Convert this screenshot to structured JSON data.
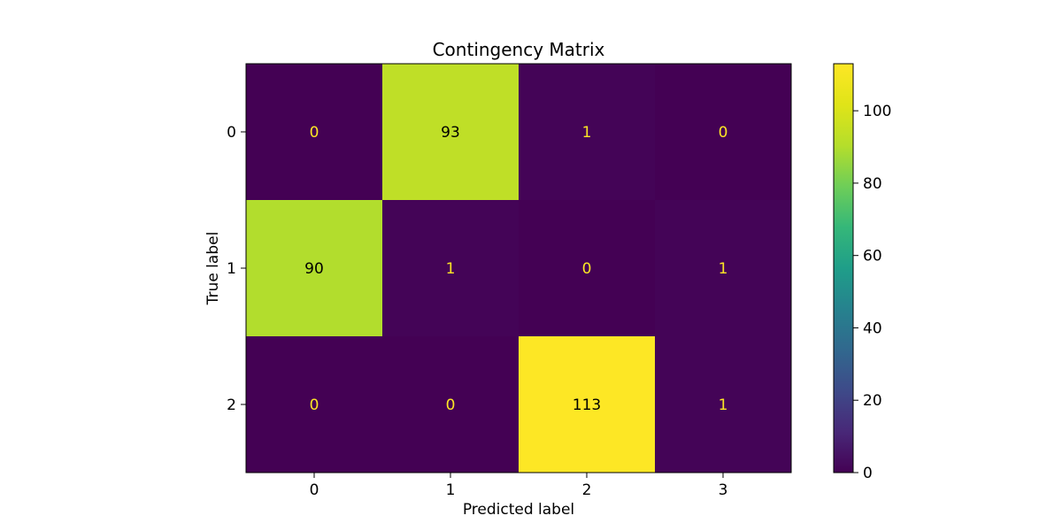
{
  "chart_data": {
    "type": "heatmap",
    "title": "Contingency Matrix",
    "xlabel": "Predicted label",
    "ylabel": "True label",
    "x_categories": [
      "0",
      "1",
      "2",
      "3"
    ],
    "y_categories": [
      "0",
      "1",
      "2"
    ],
    "values": [
      [
        0,
        93,
        1,
        0
      ],
      [
        90,
        1,
        0,
        1
      ],
      [
        0,
        0,
        113,
        1
      ]
    ],
    "colormap": "viridis",
    "colorbar": {
      "vmin": 0,
      "vmax": 113,
      "ticks": [
        0,
        20,
        40,
        60,
        80,
        100
      ]
    },
    "grid": false,
    "text_color_dark_cells": "#fde725",
    "text_color_light_cells": "#000000"
  }
}
